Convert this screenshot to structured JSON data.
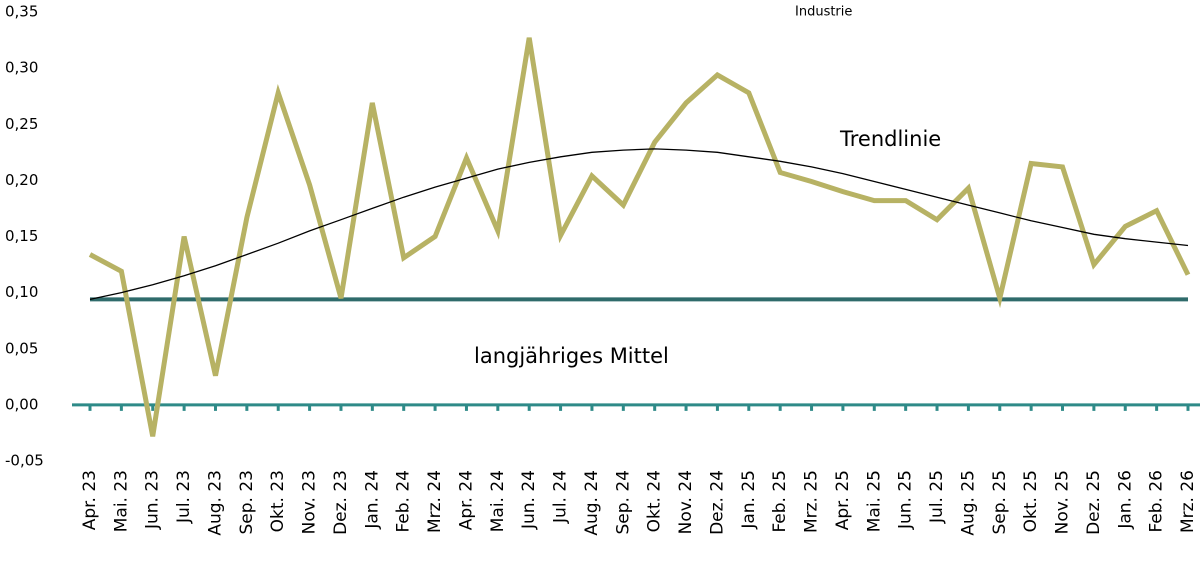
{
  "chart_data": {
    "type": "line",
    "categories": [
      "Apr. 23",
      "Mai. 23",
      "Jun. 23",
      "Jul. 23",
      "Aug. 23",
      "Sep. 23",
      "Okt. 23",
      "Nov. 23",
      "Dez. 23",
      "Jan. 24",
      "Feb. 24",
      "Mrz. 24",
      "Apr. 24",
      "Mai. 24",
      "Jun. 24",
      "Jul. 24",
      "Aug. 24",
      "Sep. 24",
      "Okt. 24",
      "Nov. 24",
      "Dez. 24",
      "Jan. 25",
      "Feb. 25",
      "Mrz. 25",
      "Apr. 25",
      "Mai. 25",
      "Jun. 25",
      "Jul. 25",
      "Aug. 25",
      "Sep. 25",
      "Okt. 25",
      "Nov. 25",
      "Dez. 25",
      "Jan. 26",
      "Feb. 26",
      "Mrz. 26"
    ],
    "series": [
      {
        "color": "#2f6b6b",
        "width": 4,
        "values": [
          0.094,
          0.094,
          0.094,
          0.094,
          0.094,
          0.094,
          0.094,
          0.094,
          0.094,
          0.094,
          0.094,
          0.094,
          0.094,
          0.094,
          0.094,
          0.094,
          0.094,
          0.094,
          0.094,
          0.094,
          0.094,
          0.094,
          0.094,
          0.094,
          0.094,
          0.094,
          0.094,
          0.094,
          0.094,
          0.094,
          0.094,
          0.094,
          0.094,
          0.094,
          0.094,
          0.094
        ]
      },
      {
        "color": "#b7b264",
        "width": 5,
        "values": [
          0.134,
          0.119,
          -0.028,
          0.15,
          0.026,
          0.167,
          0.278,
          0.196,
          0.095,
          0.269,
          0.131,
          0.15,
          0.22,
          0.155,
          0.327,
          0.151,
          0.204,
          0.178,
          0.234,
          0.269,
          0.294,
          0.278,
          0.207,
          0.199,
          0.19,
          0.182,
          0.182,
          0.165,
          0.193,
          0.095,
          0.215,
          0.212,
          0.125,
          0.159,
          0.173,
          0.116
        ]
      },
      {
        "color": "#000000",
        "width": 1.3,
        "values": [
          0.094,
          0.1,
          0.107,
          0.115,
          0.124,
          0.134,
          0.144,
          0.155,
          0.165,
          0.175,
          0.185,
          0.194,
          0.202,
          0.21,
          0.216,
          0.221,
          0.225,
          0.227,
          0.228,
          0.227,
          0.225,
          0.221,
          0.217,
          0.212,
          0.206,
          0.199,
          0.192,
          0.185,
          0.178,
          0.171,
          0.164,
          0.158,
          0.152,
          0.148,
          0.145,
          0.142
        ]
      }
    ],
    "ylim": [
      -0.05,
      0.35
    ],
    "yticks": [
      {
        "value": -0.05,
        "label": "-0,05"
      },
      {
        "value": 0,
        "label": "0,00"
      },
      {
        "value": 0.05,
        "label": "0,05"
      },
      {
        "value": 0.1,
        "label": "0,10"
      },
      {
        "value": 0.15,
        "label": "0,15"
      },
      {
        "value": 0.2,
        "label": "0,20"
      },
      {
        "value": 0.25,
        "label": "0,25"
      },
      {
        "value": 0.3,
        "label": "0,30"
      },
      {
        "value": 0.35,
        "label": "0,35"
      }
    ],
    "axis_color": "#2e8a88",
    "annotations": [
      {
        "text": "Trendlinie"
      },
      {
        "text": "langjähriges Mittel"
      },
      {
        "text": "Industrie"
      }
    ]
  }
}
